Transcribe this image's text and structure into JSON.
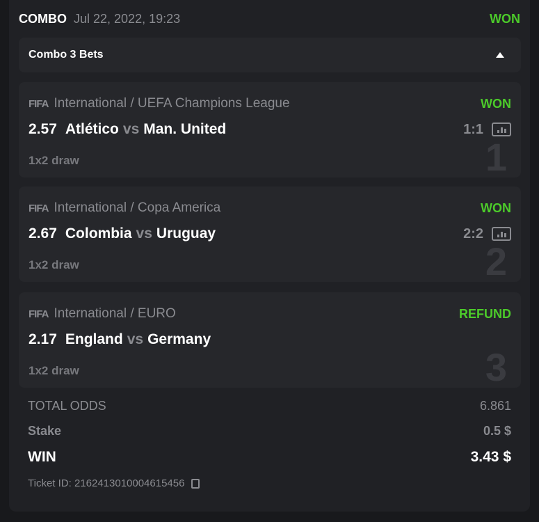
{
  "header": {
    "type": "COMBO",
    "date": "Jul 22, 2022, 19:23",
    "status": "WON"
  },
  "combo": {
    "label": "Combo 3 Bets",
    "toggle_icon": "caret-up-icon"
  },
  "bets": [
    {
      "index": "1",
      "sport": "FIFA",
      "league": "International / UEFA Champions League",
      "status": "WON",
      "odds": "2.57",
      "home": "Atlético",
      "vs": "vs",
      "away": "Man. United",
      "score": "1:1",
      "market": "1x2 draw"
    },
    {
      "index": "2",
      "sport": "FIFA",
      "league": "International / Copa America",
      "status": "WON",
      "odds": "2.67",
      "home": "Colombia",
      "vs": "vs",
      "away": "Uruguay",
      "score": "2:2",
      "market": "1x2 draw"
    },
    {
      "index": "3",
      "sport": "FIFA",
      "league": "International / EURO",
      "status": "REFUND",
      "odds": "2.17",
      "home": "England",
      "vs": "vs",
      "away": "Germany",
      "score": "",
      "market": "1x2 draw"
    }
  ],
  "summary": {
    "total_odds_label": "TOTAL ODDS",
    "total_odds": "6.861",
    "stake_label": "Stake",
    "stake": "0.5 $",
    "win_label": "WIN",
    "win": "3.43 $"
  },
  "ticket": "Ticket ID: 2162413010004615456",
  "colors": {
    "won": "#4ccb2a",
    "background": "#18191c",
    "card": "#202125"
  }
}
